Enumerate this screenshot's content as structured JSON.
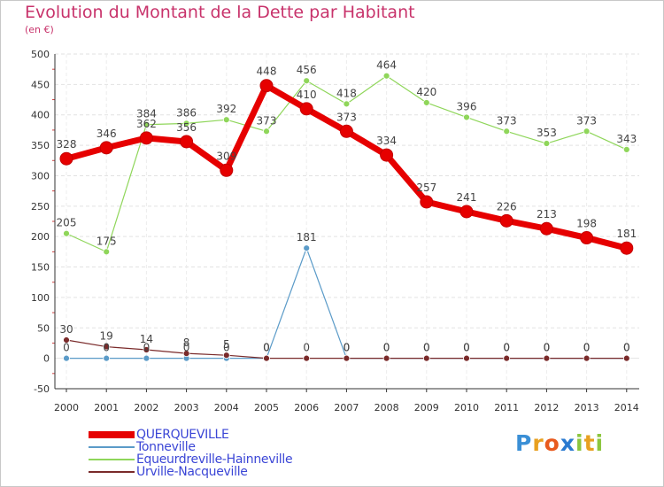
{
  "chart_data": {
    "type": "line",
    "title": "Evolution du Montant de la Dette par Habitant",
    "subtitle": "(en €)",
    "xlabel": "",
    "ylabel": "",
    "ylim": [
      -50,
      500
    ],
    "ytick_step": 50,
    "grid": true,
    "categories": [
      "2000",
      "2001",
      "2002",
      "2003",
      "2004",
      "2005",
      "2006",
      "2007",
      "2008",
      "2009",
      "2010",
      "2011",
      "2012",
      "2013",
      "2014"
    ],
    "series": [
      {
        "name": "QUERQUEVILLE",
        "color": "#e60000",
        "values": [
          328,
          346,
          362,
          356,
          309,
          448,
          410,
          373,
          334,
          257,
          241,
          226,
          213,
          198,
          181
        ]
      },
      {
        "name": "Tonneville",
        "color": "#5b9bc8",
        "values": [
          0,
          0,
          0,
          0,
          0,
          0,
          181,
          0,
          0,
          0,
          0,
          0,
          0,
          0,
          0
        ]
      },
      {
        "name": "Equeurdreville-Hainneville",
        "color": "#8fd65a",
        "values": [
          205,
          175,
          384,
          386,
          392,
          373,
          456,
          418,
          464,
          420,
          396,
          373,
          353,
          373,
          343
        ]
      },
      {
        "name": "Urville-Nacqueville",
        "color": "#7a2a2a",
        "values": [
          30,
          19,
          14,
          8,
          5,
          0,
          0,
          0,
          0,
          0,
          0,
          0,
          0,
          0,
          0
        ]
      }
    ]
  },
  "logo": {
    "letters": [
      "P",
      "r",
      "o",
      "x",
      "i",
      "t",
      "i"
    ],
    "colors": [
      "#3a8fd6",
      "#e8a020",
      "#e85a1e",
      "#2a7ad0",
      "#8cc63e",
      "#e8a020",
      "#8cc63e"
    ]
  }
}
